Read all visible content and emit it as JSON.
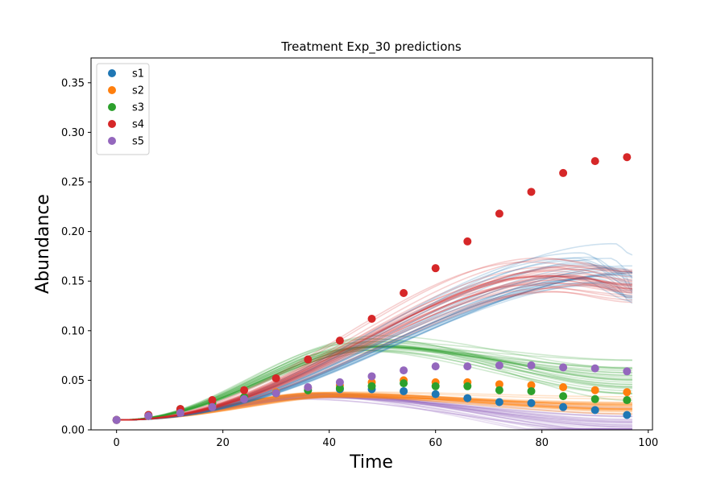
{
  "chart_data": {
    "type": "scatter",
    "title": "Treatment Exp_30 predictions",
    "xlabel": "Time",
    "ylabel": "Abundance",
    "xlim": [
      -4.8,
      100.8
    ],
    "ylim": [
      0.0,
      0.375
    ],
    "xticks": [
      0,
      20,
      40,
      60,
      80,
      100
    ],
    "yticks": [
      0.0,
      0.05,
      0.1,
      0.15,
      0.2,
      0.25,
      0.3,
      0.35
    ],
    "xtick_labels": [
      "0",
      "20",
      "40",
      "60",
      "80",
      "100"
    ],
    "ytick_labels": [
      "0.00",
      "0.05",
      "0.10",
      "0.15",
      "0.20",
      "0.25",
      "0.30",
      "0.35"
    ],
    "legend_position": "top-left",
    "grid": false,
    "x": [
      0,
      6,
      12,
      18,
      24,
      30,
      36,
      42,
      48,
      54,
      60,
      66,
      72,
      78,
      84,
      90,
      96
    ],
    "series": [
      {
        "name": "s1",
        "color": "#1f77b4",
        "values": [
          0.01,
          0.014,
          0.019,
          0.025,
          0.032,
          0.037,
          0.04,
          0.041,
          0.041,
          0.039,
          0.036,
          0.032,
          0.028,
          0.027,
          0.023,
          0.02,
          0.015
        ],
        "pred_shape": {
          "peak": 0.163,
          "spread": 0.02,
          "t_peak": 92,
          "t_peak_spread": 7,
          "t_mid": 60,
          "end_drop": 0.25
        }
      },
      {
        "name": "s2",
        "color": "#ff7f0e",
        "values": [
          0.01,
          0.014,
          0.019,
          0.025,
          0.032,
          0.038,
          0.042,
          0.045,
          0.048,
          0.05,
          0.048,
          0.048,
          0.046,
          0.045,
          0.043,
          0.04,
          0.038
        ],
        "pred_shape": {
          "peak": 0.035,
          "spread": 0.004,
          "t_peak": 40,
          "t_peak_spread": 5,
          "t_mid": 15,
          "end_drop": 0.35
        }
      },
      {
        "name": "s3",
        "color": "#2ca02c",
        "values": [
          0.01,
          0.015,
          0.021,
          0.027,
          0.033,
          0.037,
          0.04,
          0.042,
          0.044,
          0.047,
          0.044,
          0.044,
          0.04,
          0.039,
          0.034,
          0.031,
          0.03
        ],
        "pred_shape": {
          "peak": 0.085,
          "spread": 0.008,
          "t_peak": 48,
          "t_peak_spread": 4,
          "t_mid": 25,
          "end_drop": 0.45
        }
      },
      {
        "name": "s4",
        "color": "#d62728",
        "values": [
          0.01,
          0.015,
          0.021,
          0.03,
          0.04,
          0.052,
          0.071,
          0.09,
          0.112,
          0.138,
          0.163,
          0.19,
          0.218,
          0.24,
          0.259,
          0.271,
          0.275
        ],
        "pred_shape": {
          "peak": 0.158,
          "spread": 0.015,
          "t_peak": 82,
          "t_peak_spread": 6,
          "t_mid": 50,
          "end_drop": 0.12
        }
      },
      {
        "name": "s5",
        "color": "#9467bd",
        "values": [
          0.01,
          0.014,
          0.017,
          0.023,
          0.031,
          0.037,
          0.043,
          0.048,
          0.054,
          0.06,
          0.064,
          0.064,
          0.065,
          0.065,
          0.063,
          0.062,
          0.059
        ],
        "pred_shape": {
          "peak": 0.034,
          "spread": 0.004,
          "t_peak": 38,
          "t_peak_spread": 4,
          "t_mid": 14,
          "end_drop": 0.85
        }
      }
    ]
  }
}
